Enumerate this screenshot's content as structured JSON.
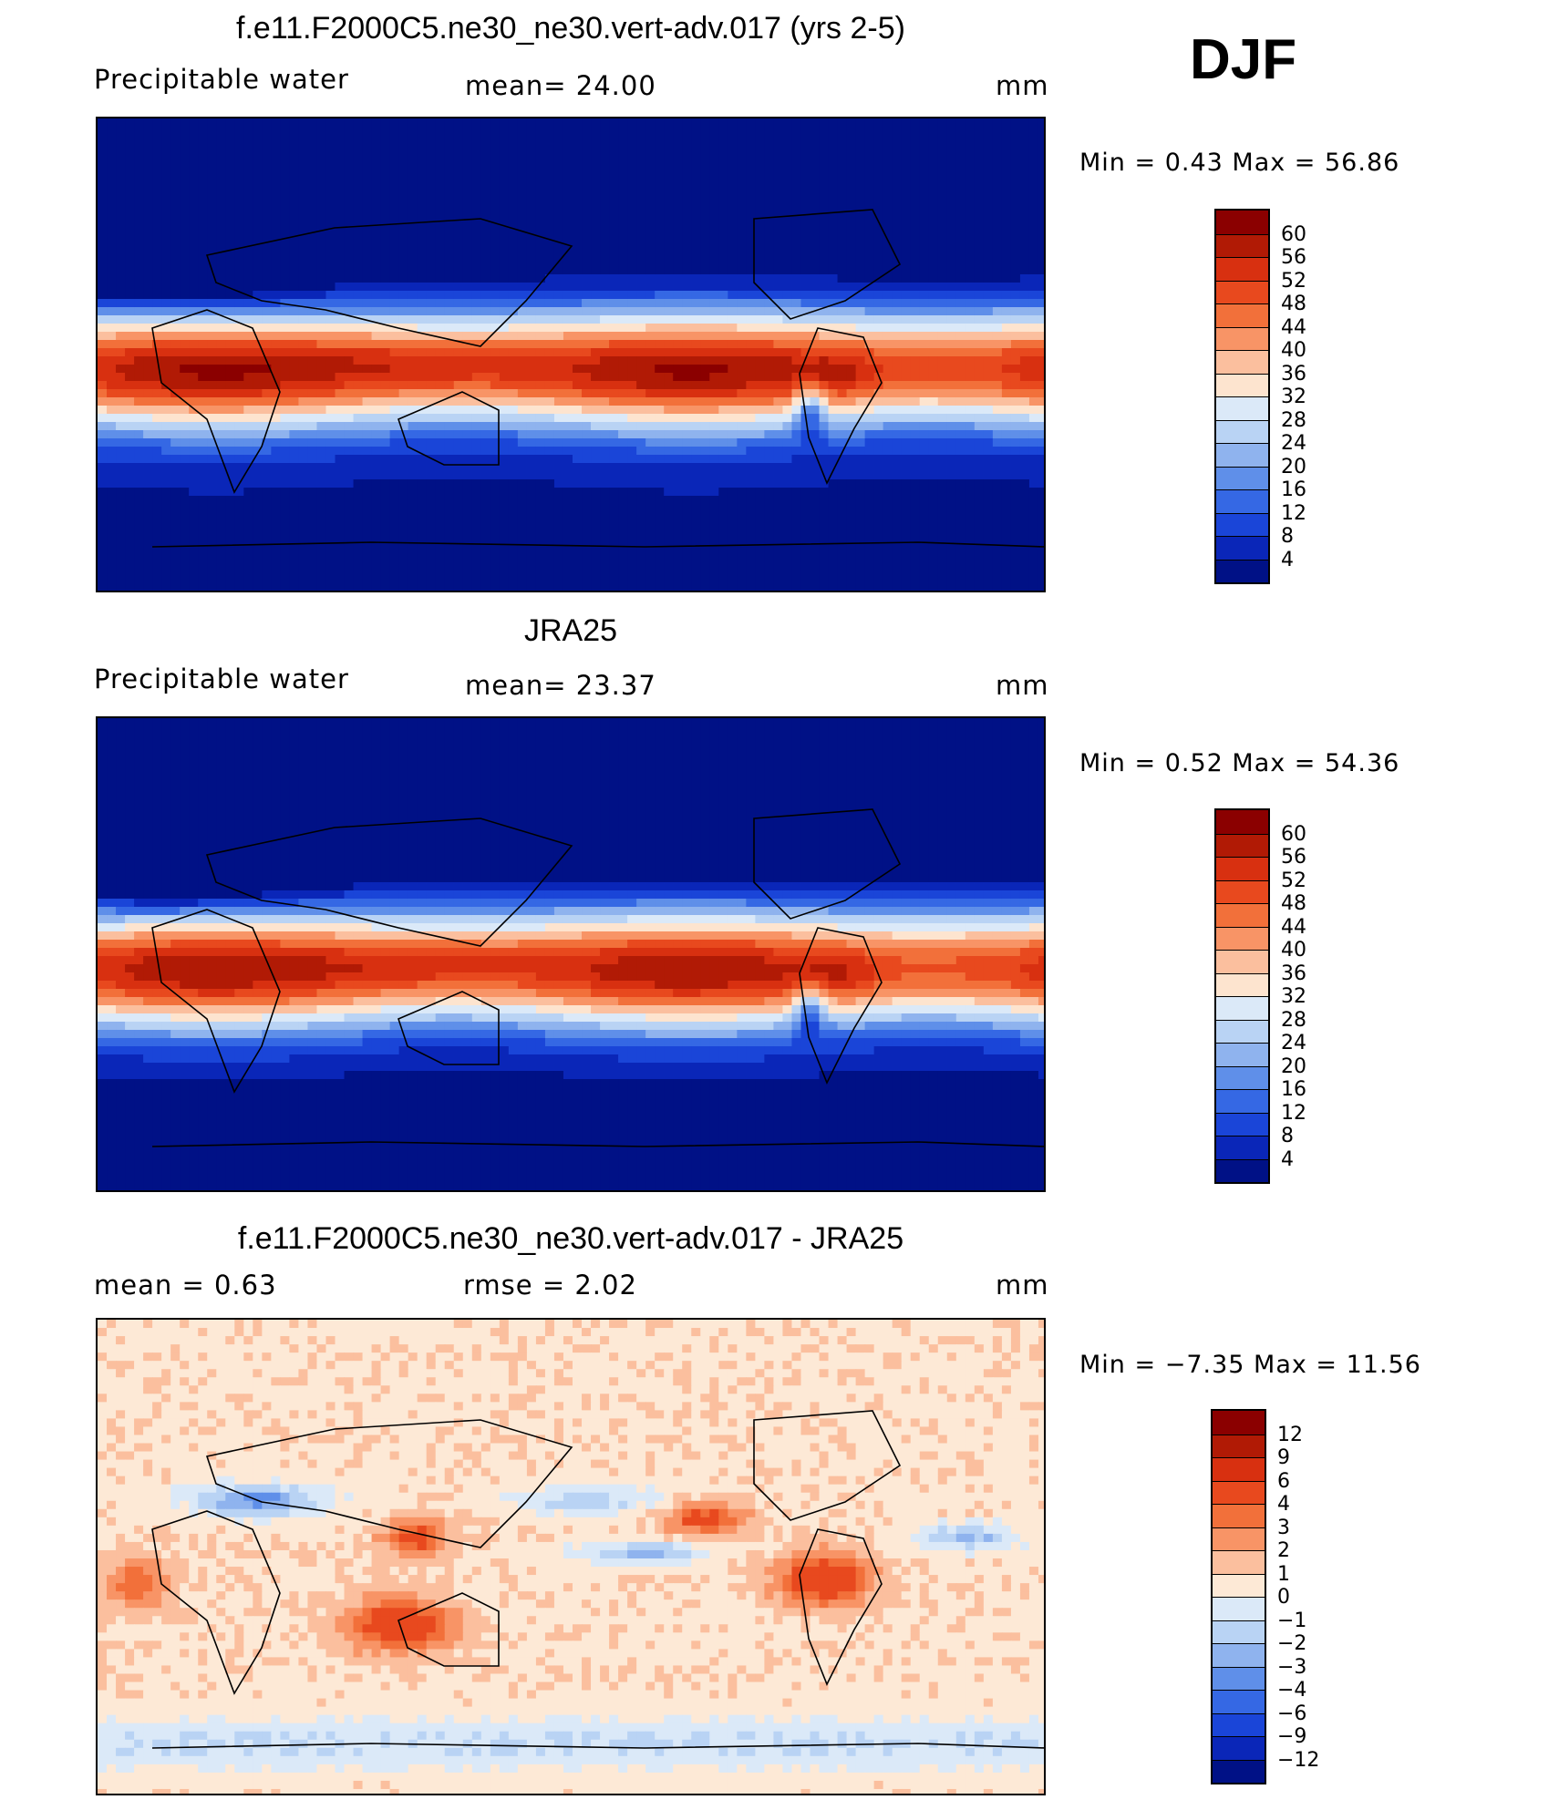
{
  "season": "DJF",
  "panels": [
    {
      "title": "f.e11.F2000C5.ne30_ne30.vert-adv.017 (yrs 2-5)",
      "left_label": "Precipitable  water",
      "center_label": "mean=   24.00",
      "right_label": "mm",
      "min_max": "Min  =     0.43  Max  =    56.86",
      "kind": "field"
    },
    {
      "title": "JRA25",
      "left_label": "Precipitable  water",
      "center_label": "mean=   23.37",
      "right_label": "mm",
      "min_max": "Min  =     0.52  Max  =    54.36",
      "kind": "field"
    },
    {
      "title": "f.e11.F2000C5.ne30_ne30.vert-adv.017 - JRA25",
      "left_label": "mean  =      0.63",
      "center_label": "rmse  =      2.02",
      "right_label": "mm",
      "min_max": "Min  =   −7.35  Max  =    11.56",
      "kind": "diff"
    }
  ],
  "colorbars": {
    "field": {
      "labels": [
        "60",
        "56",
        "52",
        "48",
        "44",
        "40",
        "36",
        "32",
        "28",
        "24",
        "20",
        "16",
        "12",
        "8",
        "4"
      ],
      "colors": [
        "#8b0000",
        "#b11a05",
        "#d83010",
        "#e8491e",
        "#f2703a",
        "#f89466",
        "#fbbf9e",
        "#fde4cf",
        "#dbe9f8",
        "#b9d3f4",
        "#8fb3ee",
        "#5f8fe9",
        "#3568e4",
        "#1a45d8",
        "#0a26b8",
        "#001186"
      ]
    },
    "diff": {
      "labels": [
        "12",
        "9",
        "6",
        "4",
        "3",
        "2",
        "1",
        "0",
        "−1",
        "−2",
        "−3",
        "−4",
        "−6",
        "−9",
        "−12"
      ],
      "colors": [
        "#8b0000",
        "#b11a05",
        "#d83010",
        "#e8491e",
        "#f2703a",
        "#f89466",
        "#fbbf9e",
        "#fde9d6",
        "#dbe9f8",
        "#b9d3f4",
        "#8fb3ee",
        "#5f8fe9",
        "#3568e4",
        "#1a45d8",
        "#0a26b8",
        "#001186"
      ]
    }
  }
}
